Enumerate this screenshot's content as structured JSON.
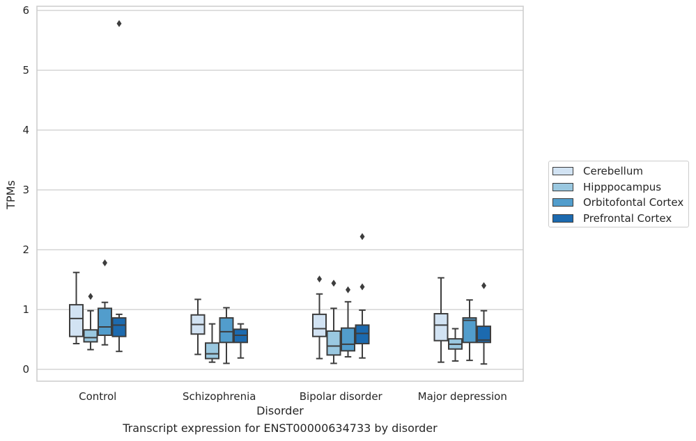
{
  "chart_data": {
    "type": "box",
    "title": "Transcript expression for ENST00000634733 by disorder",
    "xlabel": "Disorder",
    "ylabel": "TPMs",
    "ylim": [
      -0.18,
      6.1
    ],
    "yticks": [
      0,
      1,
      2,
      3,
      4,
      5,
      6
    ],
    "grid": "horizontal",
    "legend_position": "right-outside",
    "categories": [
      "Control",
      "Schizophrenia",
      "Bipolar disorder",
      "Major depression"
    ],
    "series": [
      {
        "name": "Cerebellum",
        "color": "#d2e3f3",
        "boxes": [
          {
            "min": 0.43,
            "q1": 0.55,
            "median": 0.85,
            "q3": 1.08,
            "max": 1.62,
            "outliers": []
          },
          {
            "min": 0.25,
            "q1": 0.59,
            "median": 0.75,
            "q3": 0.91,
            "max": 1.17,
            "outliers": []
          },
          {
            "min": 0.18,
            "q1": 0.55,
            "median": 0.68,
            "q3": 0.92,
            "max": 1.26,
            "outliers": [
              1.51
            ]
          },
          {
            "min": 0.12,
            "q1": 0.48,
            "median": 0.74,
            "q3": 0.93,
            "max": 1.53,
            "outliers": []
          }
        ]
      },
      {
        "name": "Hipppocampus",
        "color": "#9ac8e0",
        "boxes": [
          {
            "min": 0.33,
            "q1": 0.46,
            "median": 0.53,
            "q3": 0.66,
            "max": 0.98,
            "outliers": [
              1.22
            ]
          },
          {
            "min": 0.12,
            "q1": 0.18,
            "median": 0.26,
            "q3": 0.44,
            "max": 0.76,
            "outliers": []
          },
          {
            "min": 0.1,
            "q1": 0.24,
            "median": 0.39,
            "q3": 0.64,
            "max": 1.02,
            "outliers": [
              1.44
            ]
          },
          {
            "min": 0.14,
            "q1": 0.34,
            "median": 0.42,
            "q3": 0.51,
            "max": 0.68,
            "outliers": []
          }
        ]
      },
      {
        "name": "Orbitofontal Cortex",
        "color": "#529dcc",
        "boxes": [
          {
            "min": 0.41,
            "q1": 0.57,
            "median": 0.71,
            "q3": 1.02,
            "max": 1.12,
            "outliers": [
              1.78
            ]
          },
          {
            "min": 0.1,
            "q1": 0.45,
            "median": 0.63,
            "q3": 0.86,
            "max": 1.03,
            "outliers": []
          },
          {
            "min": 0.21,
            "q1": 0.31,
            "median": 0.42,
            "q3": 0.69,
            "max": 1.13,
            "outliers": [
              1.33
            ]
          },
          {
            "min": 0.15,
            "q1": 0.45,
            "median": 0.82,
            "q3": 0.86,
            "max": 1.16,
            "outliers": []
          }
        ]
      },
      {
        "name": "Prefrontal Cortex",
        "color": "#1c6aaf",
        "boxes": [
          {
            "min": 0.3,
            "q1": 0.55,
            "median": 0.74,
            "q3": 0.86,
            "max": 0.92,
            "outliers": [
              5.78
            ]
          },
          {
            "min": 0.19,
            "q1": 0.45,
            "median": 0.57,
            "q3": 0.67,
            "max": 0.76,
            "outliers": []
          },
          {
            "min": 0.19,
            "q1": 0.43,
            "median": 0.6,
            "q3": 0.74,
            "max": 0.99,
            "outliers": [
              1.38,
              2.22
            ]
          },
          {
            "min": 0.09,
            "q1": 0.45,
            "median": 0.49,
            "q3": 0.72,
            "max": 0.98,
            "outliers": [
              1.4
            ]
          }
        ]
      }
    ]
  }
}
